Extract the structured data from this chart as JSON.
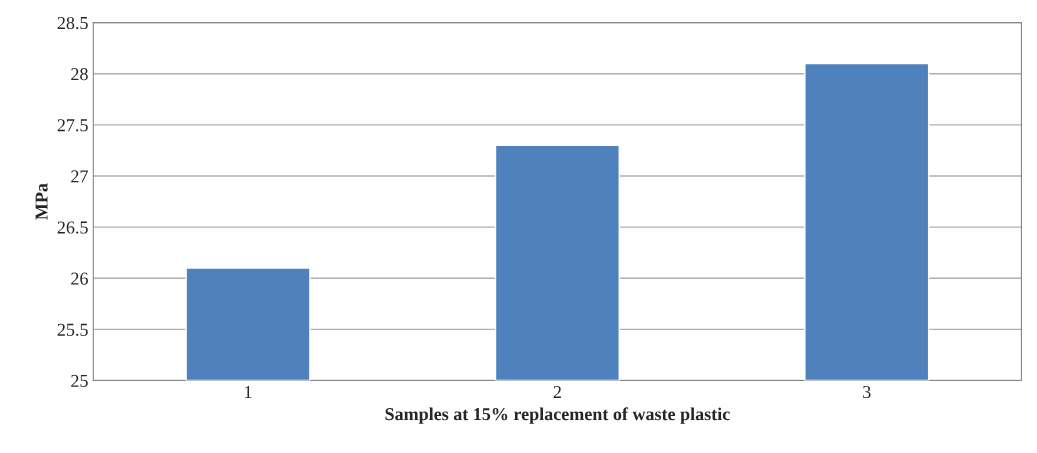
{
  "chart_data": {
    "type": "bar",
    "categories": [
      "1",
      "2",
      "3"
    ],
    "values": [
      26.1,
      27.3,
      28.1
    ],
    "color": "#4f81bd",
    "xlabel": "Samples at 15% replacement of waste plastic",
    "ylabel": "MPa",
    "ylim": [
      25,
      28.5
    ],
    "yticks": [
      25,
      25.5,
      26,
      26.5,
      27,
      27.5,
      28,
      28.5
    ],
    "grid": "y"
  }
}
